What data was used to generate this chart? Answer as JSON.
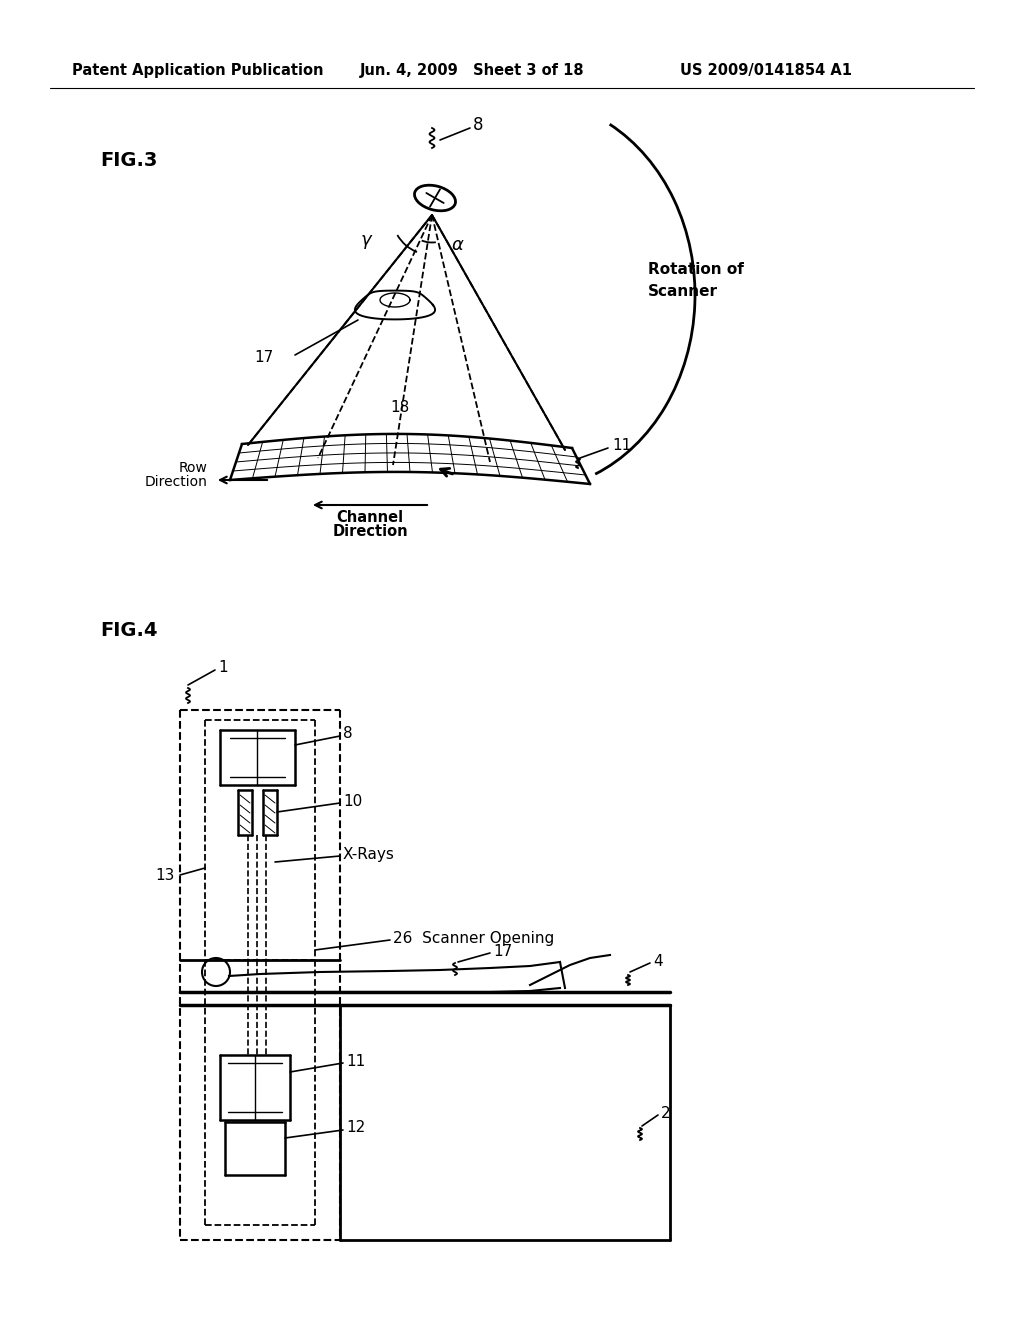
{
  "bg_color": "#ffffff",
  "header_text": "Patent Application Publication",
  "header_date": "Jun. 4, 2009   Sheet 3 of 18",
  "header_patent": "US 2009/0141854 A1"
}
